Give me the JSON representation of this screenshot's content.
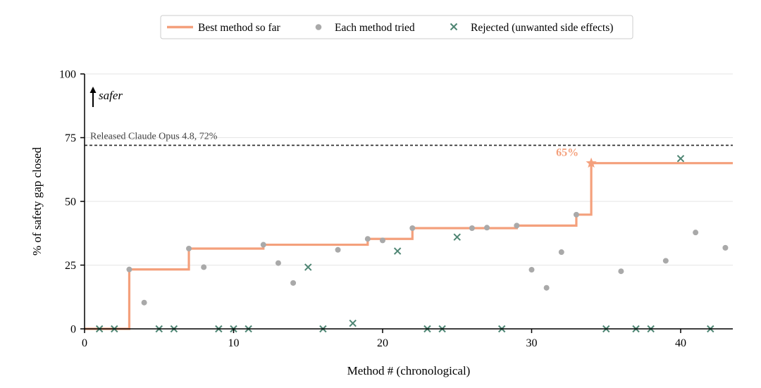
{
  "chart_data": {
    "type": "scatter",
    "title": "",
    "xlabel": "Method # (chronological)",
    "ylabel": "% of safety gap closed",
    "xlim": [
      0,
      43.5
    ],
    "ylim": [
      0,
      100
    ],
    "xticks": [
      0,
      10,
      20,
      30,
      40
    ],
    "yticks": [
      0,
      25,
      50,
      75,
      100
    ],
    "grid": "horizontal",
    "legend": {
      "position": "top-center",
      "entries": [
        {
          "label": "Best method so far",
          "marker": "line",
          "color": "#f4a07c"
        },
        {
          "label": "Each method tried",
          "marker": "dot",
          "color": "#a9a9a9"
        },
        {
          "label": "Rejected (unwanted side effects)",
          "marker": "x",
          "color": "#4e8573"
        }
      ]
    },
    "colors": {
      "best": "#f4a07c",
      "tried": "#a9a9a9",
      "rejected": "#4e8573",
      "reference": "#333333",
      "callout": "#f4a07c"
    },
    "reference_line": {
      "y": 72,
      "label": "Released Claude Opus 4.8, 72%"
    },
    "direction_label": "safer",
    "best_so_far": {
      "name": "Best method so far",
      "x": [
        0,
        3,
        7,
        12,
        19,
        22,
        29,
        33,
        34,
        43.5
      ],
      "y": [
        0,
        23.3,
        31.5,
        33.0,
        35.3,
        39.5,
        40.5,
        44.8,
        65.0,
        65.0
      ]
    },
    "callout": {
      "x": 34,
      "y": 65,
      "label": "65%"
    },
    "tried": {
      "name": "Each method tried",
      "points": [
        [
          3,
          23.3
        ],
        [
          4,
          10.3
        ],
        [
          7,
          31.5
        ],
        [
          8,
          24.2
        ],
        [
          12,
          33.0
        ],
        [
          13,
          25.8
        ],
        [
          14,
          18.0
        ],
        [
          17,
          31.0
        ],
        [
          19,
          35.3
        ],
        [
          20,
          34.7
        ],
        [
          22,
          39.5
        ],
        [
          26,
          39.5
        ],
        [
          27,
          39.7
        ],
        [
          29,
          40.5
        ],
        [
          30,
          23.2
        ],
        [
          31,
          16.1
        ],
        [
          32,
          30.1
        ],
        [
          33,
          44.8
        ],
        [
          36,
          22.6
        ],
        [
          39,
          26.7
        ],
        [
          41,
          37.8
        ],
        [
          43,
          31.8
        ]
      ]
    },
    "rejected": {
      "name": "Rejected (unwanted side effects)",
      "points": [
        [
          1,
          0
        ],
        [
          2,
          0
        ],
        [
          5,
          0
        ],
        [
          6,
          0
        ],
        [
          9,
          0
        ],
        [
          10,
          0
        ],
        [
          11,
          0
        ],
        [
          15,
          24.2
        ],
        [
          16,
          0
        ],
        [
          18,
          2.2
        ],
        [
          21,
          30.5
        ],
        [
          23,
          0
        ],
        [
          24,
          0
        ],
        [
          25,
          36.0
        ],
        [
          28,
          0
        ],
        [
          35,
          0
        ],
        [
          37,
          0
        ],
        [
          38,
          0
        ],
        [
          40,
          66.8
        ],
        [
          42,
          0
        ]
      ]
    }
  }
}
